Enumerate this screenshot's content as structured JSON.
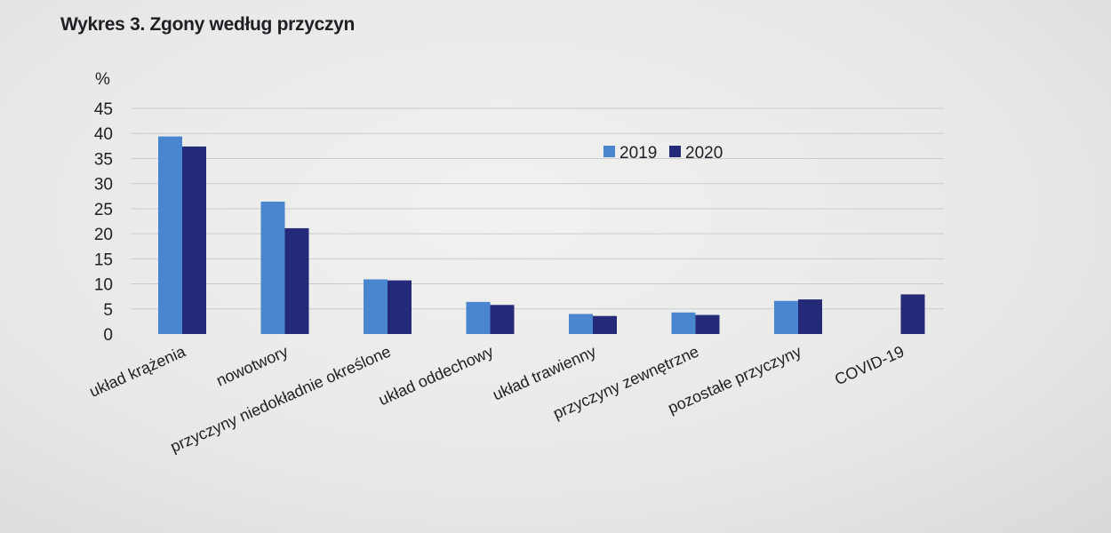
{
  "chart_data": {
    "type": "bar",
    "title": "Wykres 3. Zgony według przyczyn",
    "ylabel": "%",
    "ylim": [
      0,
      45
    ],
    "yticks": [
      0,
      5,
      10,
      15,
      20,
      25,
      30,
      35,
      40,
      45
    ],
    "grid": true,
    "legend_position": "top-right",
    "categories": [
      "układ krążenia",
      "nowotwory",
      "przyczyny niedokładnie określone",
      "układ oddechowy",
      "układ trawienny",
      "przyczyny zewnętrzne",
      "pozostałe przyczyny",
      "COVID-19"
    ],
    "series": [
      {
        "name": "2019",
        "color": "#4a86cf",
        "values": [
          39.4,
          26.4,
          10.9,
          6.4,
          4.0,
          4.3,
          6.6,
          0
        ]
      },
      {
        "name": "2020",
        "color": "#252a78",
        "values": [
          37.4,
          21.1,
          10.7,
          5.8,
          3.6,
          3.8,
          6.9,
          7.9
        ]
      }
    ]
  }
}
